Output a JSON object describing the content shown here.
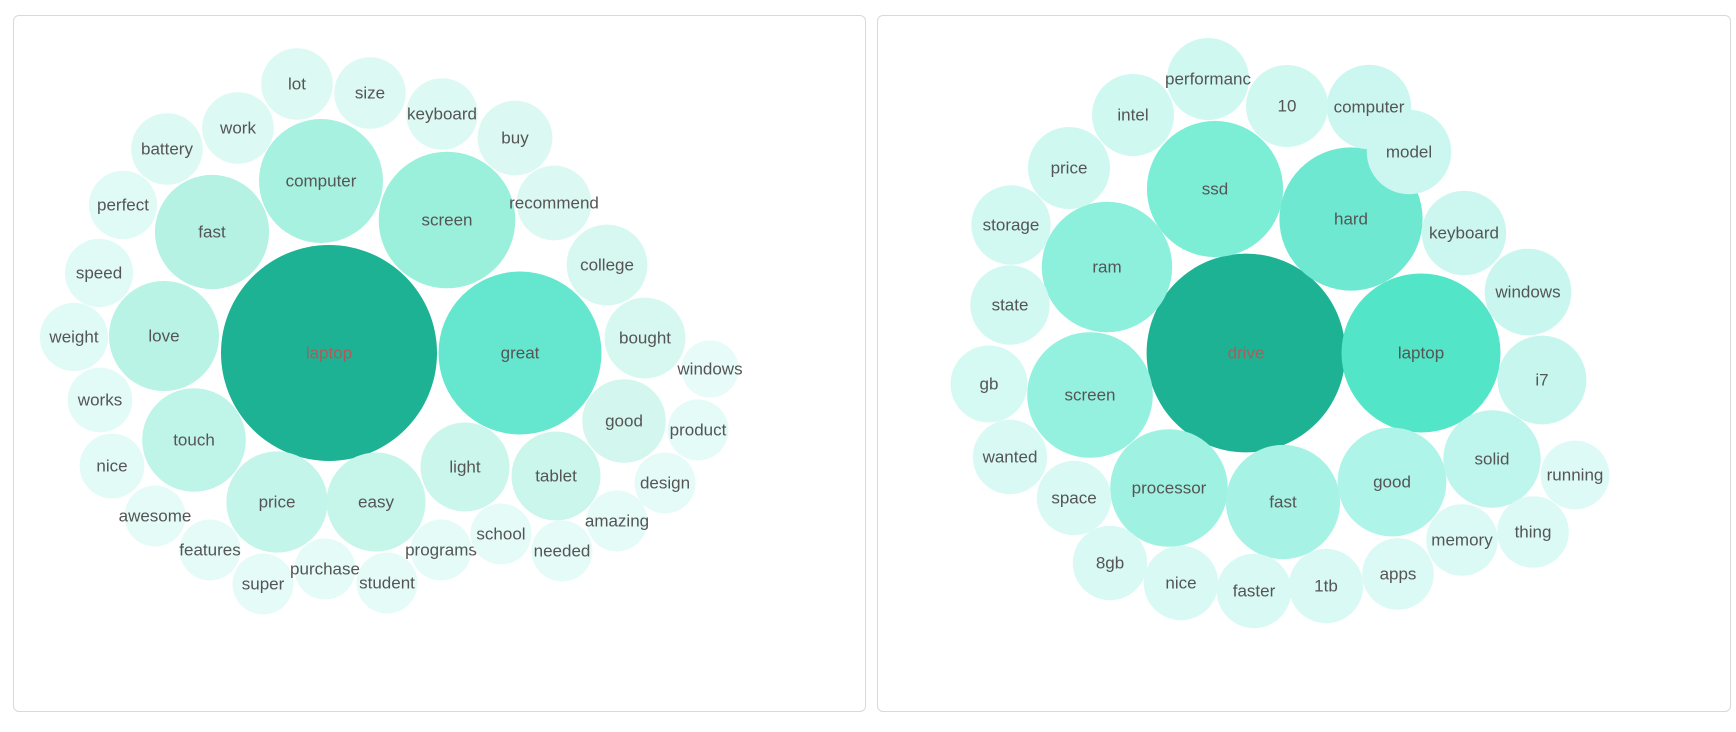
{
  "chart_data": [
    {
      "type": "bubble",
      "title": "",
      "bubbles": [
        {
          "label": "laptop",
          "value": 100,
          "color": "#1db293",
          "text_color": "#b05a5a"
        },
        {
          "label": "great",
          "value": 57,
          "color": "#65e6ce",
          "text_color": "#555555"
        },
        {
          "label": "screen",
          "value": 40,
          "color": "#9bf0dc",
          "text_color": "#555555"
        },
        {
          "label": "computer",
          "value": 33,
          "color": "#a6f1e0",
          "text_color": "#555555"
        },
        {
          "label": "fast",
          "value": 28,
          "color": "#b5f2e4",
          "text_color": "#555555"
        },
        {
          "label": "love",
          "value": 26,
          "color": "#b8f3e6",
          "text_color": "#555555"
        },
        {
          "label": "touch",
          "value": 23,
          "color": "#bff4e8",
          "text_color": "#555555"
        },
        {
          "label": "price",
          "value": 22,
          "color": "#c4f5ea",
          "text_color": "#555555"
        },
        {
          "label": "easy",
          "value": 21,
          "color": "#c6f5ea",
          "text_color": "#555555"
        },
        {
          "label": "tablet",
          "value": 17,
          "color": "#cbf6ec",
          "text_color": "#555555"
        },
        {
          "label": "light",
          "value": 17,
          "color": "#cbf6ec",
          "text_color": "#555555"
        },
        {
          "label": "good",
          "value": 15,
          "color": "#d3f7ef",
          "text_color": "#555555"
        },
        {
          "label": "college",
          "value": 14,
          "color": "#d6f8f0",
          "text_color": "#555555"
        },
        {
          "label": "bought",
          "value": 14,
          "color": "#d6f8f0",
          "text_color": "#555555"
        },
        {
          "label": "recommend",
          "value": 12,
          "color": "#dbf9f2",
          "text_color": "#555555"
        },
        {
          "label": "buy",
          "value": 12,
          "color": "#dbf9f2",
          "text_color": "#555555"
        },
        {
          "label": "keyboard",
          "value": 11,
          "color": "#ddf9f3",
          "text_color": "#555555"
        },
        {
          "label": "lot",
          "value": 11,
          "color": "#ddf9f3",
          "text_color": "#555555"
        },
        {
          "label": "size",
          "value": 11,
          "color": "#ddf9f3",
          "text_color": "#555555"
        },
        {
          "label": "work",
          "value": 11,
          "color": "#ddf9f3",
          "text_color": "#555555"
        },
        {
          "label": "battery",
          "value": 11,
          "color": "#ddf9f3",
          "text_color": "#555555"
        },
        {
          "label": "perfect",
          "value": 10,
          "color": "#e0faf5",
          "text_color": "#555555"
        },
        {
          "label": "speed",
          "value": 10,
          "color": "#e0faf5",
          "text_color": "#555555"
        },
        {
          "label": "weight",
          "value": 10,
          "color": "#e0faf5",
          "text_color": "#555555"
        },
        {
          "label": "works",
          "value": 9,
          "color": "#e2fbf6",
          "text_color": "#555555"
        },
        {
          "label": "nice",
          "value": 9,
          "color": "#e2fbf6",
          "text_color": "#555555"
        },
        {
          "label": "awesome",
          "value": 8,
          "color": "#e4fbf7",
          "text_color": "#555555"
        },
        {
          "label": "features",
          "value": 8,
          "color": "#e4fbf7",
          "text_color": "#555555"
        },
        {
          "label": "super",
          "value": 8,
          "color": "#e4fbf7",
          "text_color": "#555555"
        },
        {
          "label": "purchase",
          "value": 8,
          "color": "#e4fbf7",
          "text_color": "#555555"
        },
        {
          "label": "student",
          "value": 8,
          "color": "#e4fbf7",
          "text_color": "#555555"
        },
        {
          "label": "programs",
          "value": 8,
          "color": "#e4fbf7",
          "text_color": "#555555"
        },
        {
          "label": "school",
          "value": 8,
          "color": "#e4fbf7",
          "text_color": "#555555"
        },
        {
          "label": "needed",
          "value": 8,
          "color": "#e4fbf7",
          "text_color": "#555555"
        },
        {
          "label": "amazing",
          "value": 8,
          "color": "#e4fbf7",
          "text_color": "#555555"
        },
        {
          "label": "design",
          "value": 8,
          "color": "#e4fbf7",
          "text_color": "#555555"
        },
        {
          "label": "product",
          "value": 8,
          "color": "#e4fbf7",
          "text_color": "#555555"
        },
        {
          "label": "windows",
          "value": 7,
          "color": "#e7fbf8",
          "text_color": "#555555"
        }
      ]
    },
    {
      "type": "bubble",
      "title": "",
      "bubbles": [
        {
          "label": "drive",
          "value": 100,
          "color": "#1db293",
          "text_color": "#b05a5a"
        },
        {
          "label": "laptop",
          "value": 64,
          "color": "#52e5c7",
          "text_color": "#555555"
        },
        {
          "label": "hard",
          "value": 52,
          "color": "#6fe8d1",
          "text_color": "#555555"
        },
        {
          "label": "ssd",
          "value": 47,
          "color": "#7deed6",
          "text_color": "#555555"
        },
        {
          "label": "ram",
          "value": 43,
          "color": "#8df0dc",
          "text_color": "#555555"
        },
        {
          "label": "screen",
          "value": 40,
          "color": "#94f1df",
          "text_color": "#555555"
        },
        {
          "label": "processor",
          "value": 35,
          "color": "#9ff2e2",
          "text_color": "#555555"
        },
        {
          "label": "fast",
          "value": 33,
          "color": "#a6f3e5",
          "text_color": "#555555"
        },
        {
          "label": "good",
          "value": 30,
          "color": "#aff4e8",
          "text_color": "#555555"
        },
        {
          "label": "solid",
          "value": 24,
          "color": "#bef5ec",
          "text_color": "#555555"
        },
        {
          "label": "i7",
          "value": 20,
          "color": "#c6f6ee",
          "text_color": "#555555"
        },
        {
          "label": "windows",
          "value": 19,
          "color": "#c9f7ef",
          "text_color": "#555555"
        },
        {
          "label": "keyboard",
          "value": 18,
          "color": "#ccf7f0",
          "text_color": "#555555"
        },
        {
          "label": "model",
          "value": 18,
          "color": "#ccf7f0",
          "text_color": "#555555"
        },
        {
          "label": "computer",
          "value": 18,
          "color": "#ccf7f0",
          "text_color": "#555555"
        },
        {
          "label": "10",
          "value": 17,
          "color": "#cff8f1",
          "text_color": "#555555"
        },
        {
          "label": "performanc",
          "value": 17,
          "color": "#cff8f1",
          "text_color": "#555555"
        },
        {
          "label": "intel",
          "value": 17,
          "color": "#cff8f1",
          "text_color": "#555555"
        },
        {
          "label": "price",
          "value": 17,
          "color": "#cff8f1",
          "text_color": "#555555"
        },
        {
          "label": "storage",
          "value": 16,
          "color": "#d2f8f2",
          "text_color": "#555555"
        },
        {
          "label": "state",
          "value": 16,
          "color": "#d2f8f2",
          "text_color": "#555555"
        },
        {
          "label": "gb",
          "value": 15,
          "color": "#d5f9f3",
          "text_color": "#555555"
        },
        {
          "label": "wanted",
          "value": 14,
          "color": "#d8f9f4",
          "text_color": "#555555"
        },
        {
          "label": "space",
          "value": 14,
          "color": "#d8f9f4",
          "text_color": "#555555"
        },
        {
          "label": "8gb",
          "value": 14,
          "color": "#d8f9f4",
          "text_color": "#555555"
        },
        {
          "label": "nice",
          "value": 14,
          "color": "#d8f9f4",
          "text_color": "#555555"
        },
        {
          "label": "faster",
          "value": 14,
          "color": "#d8f9f4",
          "text_color": "#555555"
        },
        {
          "label": "1tb",
          "value": 14,
          "color": "#d8f9f4",
          "text_color": "#555555"
        },
        {
          "label": "apps",
          "value": 13,
          "color": "#dbfaf5",
          "text_color": "#555555"
        },
        {
          "label": "memory",
          "value": 13,
          "color": "#dbfaf5",
          "text_color": "#555555"
        },
        {
          "label": "thing",
          "value": 13,
          "color": "#dbfaf5",
          "text_color": "#555555"
        },
        {
          "label": "running",
          "value": 12,
          "color": "#defaf6",
          "text_color": "#555555"
        }
      ]
    }
  ]
}
